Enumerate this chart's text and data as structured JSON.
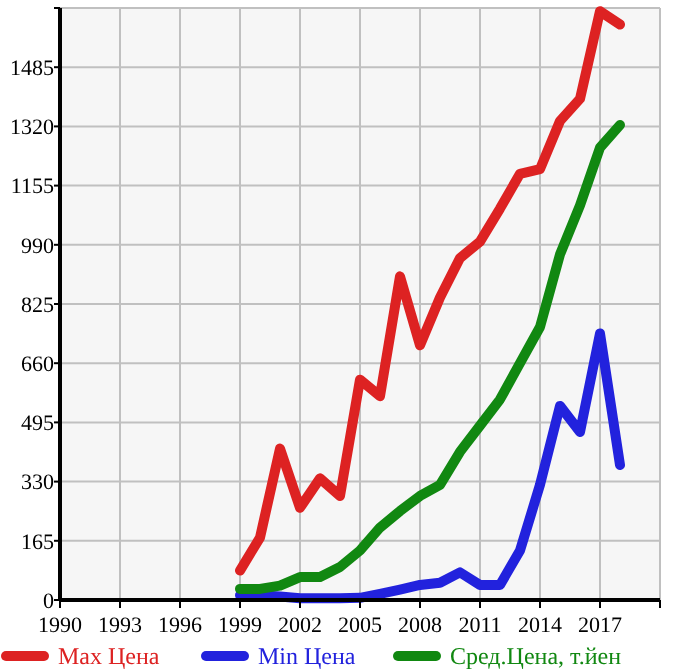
{
  "chart_data": {
    "type": "line",
    "x": [
      1999,
      2000,
      2001,
      2002,
      2003,
      2004,
      2005,
      2006,
      2007,
      2008,
      2009,
      2010,
      2011,
      2012,
      2013,
      2014,
      2015,
      2016,
      2017,
      2018
    ],
    "series": [
      {
        "name": "Max Цена",
        "color": "#dd2222",
        "values": [
          82,
          174,
          422,
          257,
          339,
          290,
          614,
          568,
          902,
          710,
          843,
          953,
          999,
          1091,
          1188,
          1201,
          1335,
          1397,
          1641,
          1604
        ]
      },
      {
        "name": "Min Цена",
        "color": "#2222dd",
        "values": [
          13,
          13,
          10,
          5,
          5,
          5,
          6,
          17,
          29,
          42,
          48,
          77,
          42,
          42,
          138,
          321,
          541,
          468,
          743,
          376
        ]
      },
      {
        "name": "Сред.Цена, т.йен",
        "color": "#118811",
        "values": [
          31,
          31,
          40,
          64,
          64,
          92,
          138,
          202,
          248,
          290,
          321,
          413,
          486,
          559,
          660,
          761,
          963,
          1100,
          1261,
          1324
        ]
      }
    ],
    "xlim": [
      1990,
      2020
    ],
    "xticks": [
      1990,
      1993,
      1996,
      1999,
      2002,
      2005,
      2008,
      2011,
      2014,
      2017
    ],
    "ylim": [
      0,
      1650
    ],
    "yticks": [
      0,
      165,
      330,
      495,
      660,
      825,
      990,
      1155,
      1320,
      1485,
      {
        "value": 1650,
        "label": null
      }
    ],
    "grid": true,
    "legend": "bottom",
    "marker": "none",
    "line_style": "solid"
  }
}
